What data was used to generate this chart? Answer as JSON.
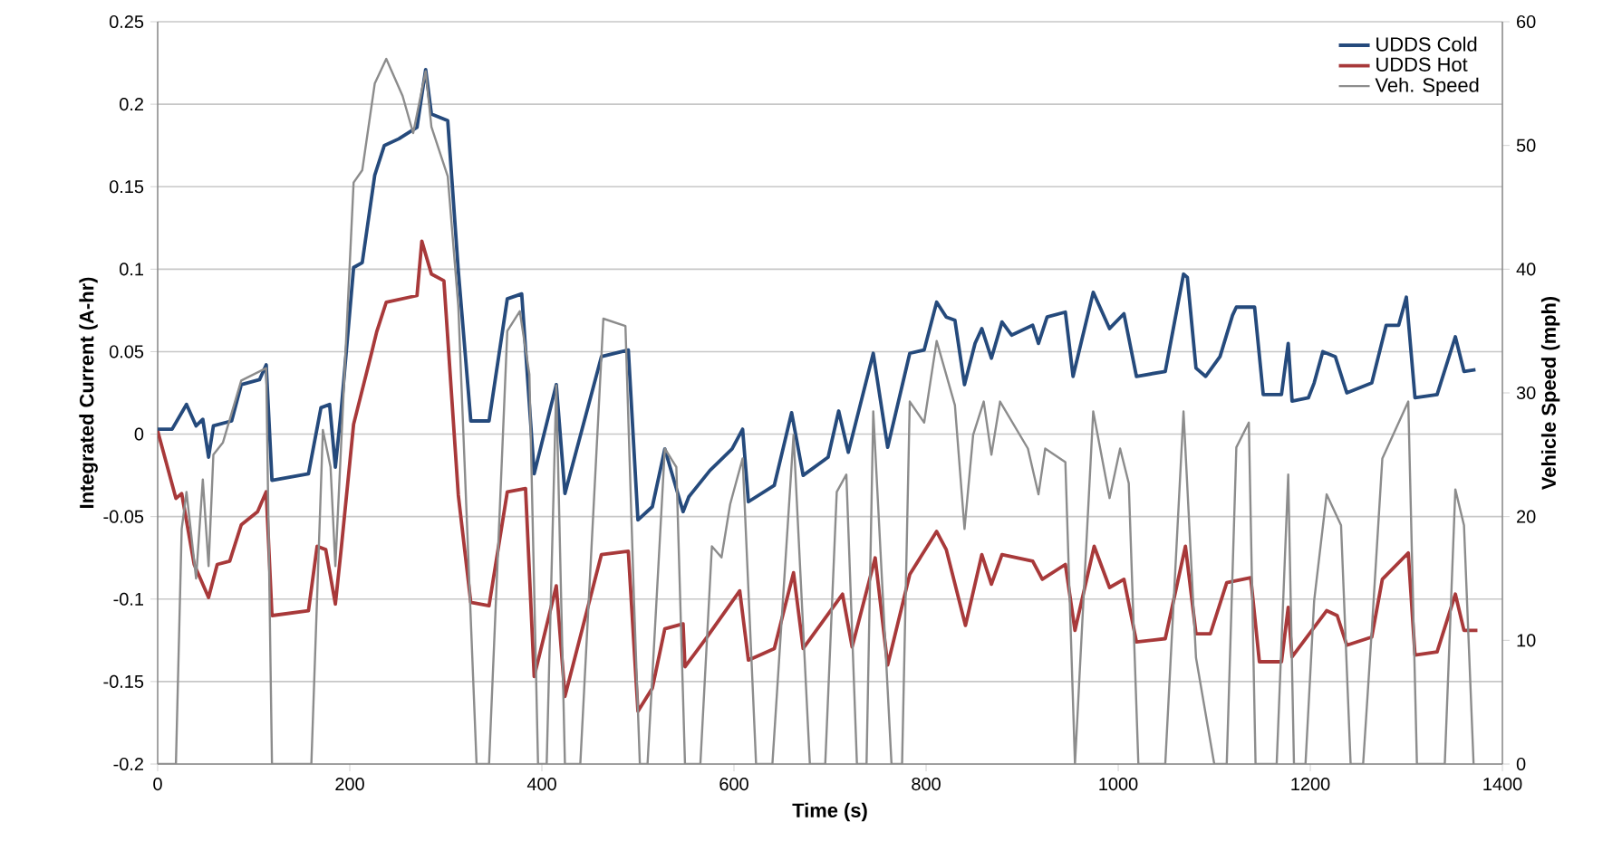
{
  "chart_data": {
    "type": "line",
    "xlabel": "Time (s)",
    "ylabel": "Integrated Current  (A-hr)",
    "y2label": "Vehicle Speed (mph)",
    "xlim": [
      0,
      1400
    ],
    "xticks": [
      0,
      200,
      400,
      600,
      800,
      1000,
      1200,
      1400
    ],
    "ylim": [
      -0.2,
      0.25
    ],
    "yticks": [
      -0.2,
      -0.15,
      -0.1,
      -0.05,
      0,
      0.05,
      0.1,
      0.15,
      0.2,
      0.25
    ],
    "y2lim": [
      0,
      60
    ],
    "y2ticks": [
      0,
      10,
      20,
      30,
      40,
      50,
      60
    ],
    "grid": "y",
    "legend": "top right",
    "series": [
      {
        "name": "UDDS Cold",
        "color": "#254a7c",
        "x": [
          0,
          15,
          30,
          40,
          47,
          53,
          58,
          77,
          87,
          106,
          113,
          119,
          157,
          170,
          179,
          185,
          191,
          204,
          213,
          226,
          236,
          251,
          270,
          279,
          285,
          302,
          313,
          326,
          345,
          364,
          379,
          392,
          415,
          424,
          462,
          490,
          500,
          515,
          528,
          547,
          553,
          575,
          598,
          609,
          615,
          642,
          660,
          672,
          698,
          709,
          719,
          745,
          760,
          783,
          798,
          811,
          821,
          830,
          840,
          851,
          858,
          868,
          879,
          889,
          911,
          917,
          926,
          945,
          953,
          974,
          991,
          1006,
          1019,
          1049,
          1068,
          1072,
          1081,
          1091,
          1106,
          1119,
          1123,
          1142,
          1151,
          1170,
          1177,
          1181,
          1198,
          1204,
          1213,
          1226,
          1232,
          1238,
          1264,
          1279,
          1292,
          1300,
          1309,
          1332,
          1351,
          1360,
          1372
        ],
        "values": [
          0.003,
          0.003,
          0.018,
          0.005,
          0.009,
          -0.014,
          0.005,
          0.008,
          0.03,
          0.033,
          0.042,
          -0.028,
          -0.024,
          0.016,
          0.018,
          -0.02,
          0.014,
          0.101,
          0.104,
          0.157,
          0.175,
          0.179,
          0.186,
          0.221,
          0.194,
          0.19,
          0.099,
          0.008,
          0.008,
          0.082,
          0.085,
          -0.024,
          0.03,
          -0.036,
          0.047,
          0.051,
          -0.052,
          -0.044,
          -0.009,
          -0.047,
          -0.038,
          -0.022,
          -0.009,
          0.003,
          -0.041,
          -0.031,
          0.013,
          -0.025,
          -0.014,
          0.014,
          -0.011,
          0.049,
          -0.008,
          0.049,
          0.051,
          0.08,
          0.071,
          0.069,
          0.03,
          0.055,
          0.064,
          0.046,
          0.068,
          0.06,
          0.066,
          0.055,
          0.071,
          0.074,
          0.035,
          0.086,
          0.064,
          0.073,
          0.035,
          0.038,
          0.097,
          0.095,
          0.04,
          0.035,
          0.047,
          0.072,
          0.077,
          0.077,
          0.024,
          0.024,
          0.055,
          0.02,
          0.022,
          0.031,
          0.05,
          0.047,
          0.036,
          0.025,
          0.031,
          0.066,
          0.066,
          0.083,
          0.022,
          0.024,
          0.059,
          0.038,
          0.039
        ]
      },
      {
        "name": "UDDS Hot",
        "color": "#a8393a",
        "x": [
          0,
          19,
          25,
          38,
          53,
          62,
          75,
          87,
          104,
          113,
          119,
          157,
          166,
          175,
          185,
          191,
          204,
          223,
          228,
          238,
          270,
          275,
          285,
          298,
          313,
          326,
          345,
          364,
          383,
          392,
          415,
          424,
          462,
          490,
          500,
          515,
          528,
          547,
          549,
          572,
          606,
          615,
          642,
          662,
          672,
          713,
          723,
          747,
          760,
          783,
          811,
          821,
          841,
          858,
          868,
          879,
          911,
          921,
          945,
          955,
          975,
          991,
          1006,
          1019,
          1049,
          1070,
          1081,
          1096,
          1113,
          1138,
          1147,
          1170,
          1177,
          1181,
          1217,
          1228,
          1238,
          1264,
          1275,
          1302,
          1309,
          1332,
          1351,
          1360,
          1374
        ],
        "values": [
          0.002,
          -0.039,
          -0.036,
          -0.079,
          -0.099,
          -0.079,
          -0.077,
          -0.055,
          -0.047,
          -0.035,
          -0.11,
          -0.107,
          -0.068,
          -0.07,
          -0.103,
          -0.07,
          0.006,
          0.05,
          0.062,
          0.08,
          0.084,
          0.117,
          0.097,
          0.093,
          -0.037,
          -0.102,
          -0.104,
          -0.035,
          -0.033,
          -0.147,
          -0.092,
          -0.159,
          -0.073,
          -0.071,
          -0.168,
          -0.154,
          -0.118,
          -0.115,
          -0.141,
          -0.123,
          -0.095,
          -0.137,
          -0.13,
          -0.084,
          -0.13,
          -0.097,
          -0.129,
          -0.075,
          -0.14,
          -0.085,
          -0.059,
          -0.07,
          -0.116,
          -0.073,
          -0.091,
          -0.073,
          -0.077,
          -0.088,
          -0.079,
          -0.119,
          -0.068,
          -0.093,
          -0.088,
          -0.126,
          -0.124,
          -0.068,
          -0.121,
          -0.121,
          -0.09,
          -0.087,
          -0.138,
          -0.138,
          -0.105,
          -0.135,
          -0.107,
          -0.11,
          -0.128,
          -0.123,
          -0.088,
          -0.072,
          -0.134,
          -0.132,
          -0.097,
          -0.119,
          -0.119
        ]
      },
      {
        "name": "Veh. Speed",
        "color": "#8c8c8c",
        "axis": "y2",
        "x": [
          0,
          19,
          25,
          30,
          40,
          47,
          53,
          58,
          68,
          87,
          113,
          119,
          160,
          172,
          180,
          185,
          204,
          213,
          226,
          238,
          255,
          266,
          279,
          285,
          302,
          313,
          332,
          345,
          364,
          377,
          387,
          396,
          405,
          415,
          424,
          440,
          464,
          487,
          496,
          502,
          510,
          528,
          540,
          549,
          565,
          577,
          587,
          596,
          609,
          623,
          640,
          662,
          679,
          695,
          707,
          717,
          728,
          738,
          745,
          764,
          775,
          783,
          798,
          811,
          830,
          840,
          849,
          860,
          868,
          877,
          906,
          917,
          924,
          945,
          955,
          974,
          991,
          1002,
          1011,
          1021,
          1049,
          1068,
          1081,
          1100,
          1113,
          1123,
          1136,
          1143,
          1165,
          1177,
          1183,
          1195,
          1204,
          1217,
          1232,
          1242,
          1255,
          1264,
          1275,
          1302,
          1311,
          1340,
          1351,
          1360,
          1370
        ],
        "values": [
          0,
          0,
          19,
          22,
          15,
          23,
          16,
          25,
          26,
          31,
          32,
          0,
          0,
          27,
          24,
          16,
          47,
          48,
          55,
          57,
          54,
          51,
          56,
          51.5,
          47.5,
          37,
          0,
          0,
          35,
          36.6,
          31.5,
          0,
          0,
          30.6,
          0,
          0,
          36,
          35.4,
          13,
          0,
          0,
          25.5,
          24,
          0,
          0,
          17.6,
          16.7,
          21,
          24.7,
          0,
          0,
          26.6,
          0,
          0,
          22,
          23.4,
          0,
          0,
          28.5,
          0,
          0,
          29.3,
          27.6,
          34.2,
          29,
          19,
          26.6,
          29.3,
          25,
          29.3,
          25.5,
          21.8,
          25.5,
          24.4,
          0,
          28.5,
          21.5,
          25.5,
          22.7,
          0,
          0,
          28.5,
          8.6,
          0,
          0,
          25.6,
          27.6,
          0,
          0,
          23.4,
          0,
          0,
          13.2,
          21.8,
          19.3,
          0,
          0,
          10.8,
          24.7,
          29.3,
          0,
          0,
          22.2,
          19.3,
          0
        ]
      }
    ]
  }
}
